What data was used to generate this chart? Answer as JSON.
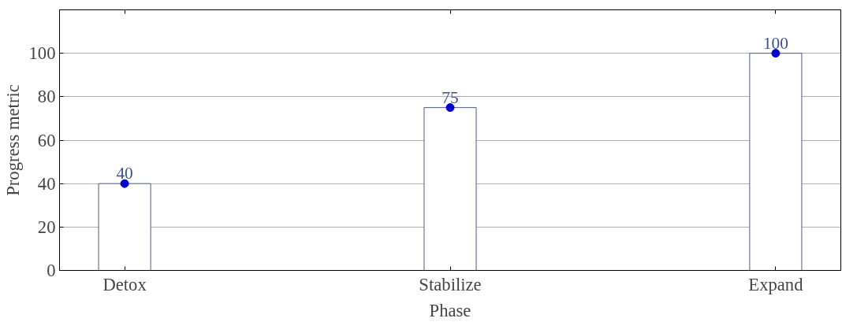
{
  "chart_data": {
    "type": "bar",
    "xlabel": "Phase",
    "ylabel": "Progress metric",
    "categories": [
      "Detox",
      "Stabilize",
      "Expand"
    ],
    "series": [
      {
        "color": "#4a5a8a",
        "values": [
          40,
          75,
          100
        ]
      },
      {
        "type": "scatter",
        "color": "#0000cc",
        "x": [
          "Detox",
          "Stabilize",
          "Expand"
        ],
        "values": [
          40,
          75,
          100
        ],
        "value_labels": [
          "40",
          "75",
          "100"
        ]
      }
    ],
    "ylim": [
      0,
      120
    ],
    "yticks": [
      0,
      20,
      40,
      60,
      80,
      100
    ],
    "grid": "y",
    "marker": "circle"
  }
}
